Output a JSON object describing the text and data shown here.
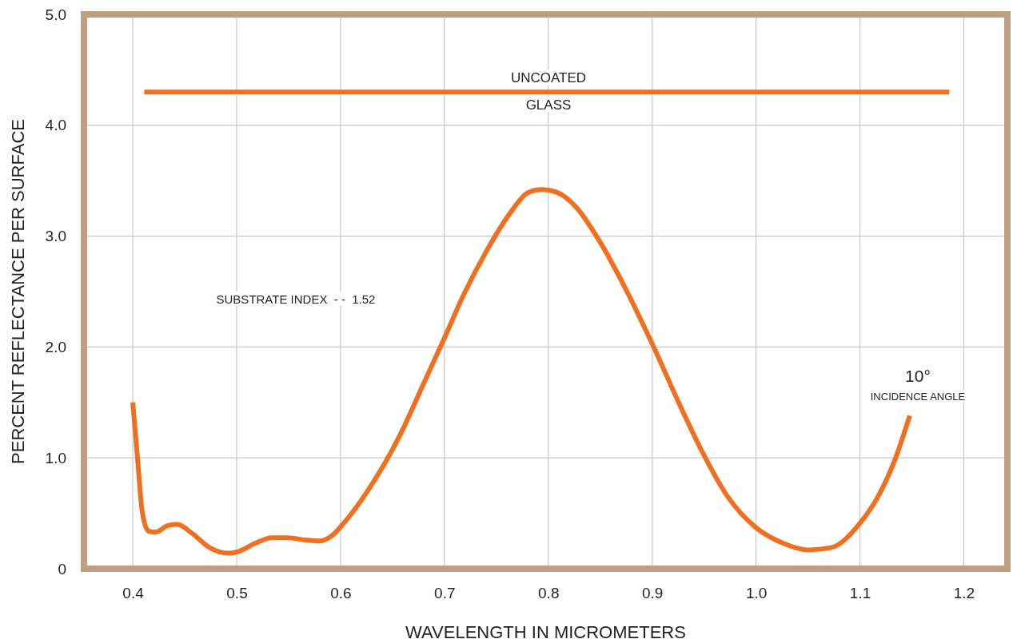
{
  "chart_data": {
    "type": "line",
    "xlabel": "WAVELENGTH IN MICROMETERS",
    "ylabel": "PERCENT REFLECTANCE PER SURFACE",
    "xlim": [
      0.353,
      1.242
    ],
    "xticks": [
      0.4,
      0.5,
      0.6,
      0.7,
      0.8,
      0.9,
      {
        "value": 1.0,
        "label": "1.0"
      },
      1.1,
      1.2
    ],
    "ylim": [
      0,
      5
    ],
    "yticks": [
      0,
      {
        "value": 1,
        "label": "1.0"
      },
      {
        "value": 2,
        "label": "2.0"
      },
      {
        "value": 3,
        "label": "3.0"
      },
      {
        "value": 4,
        "label": "4.0"
      },
      {
        "value": 5,
        "label": "5.0"
      }
    ],
    "grid": true,
    "series": [
      {
        "color": "#f07022",
        "x": [
          0.4,
          0.405,
          0.409,
          0.415,
          0.422,
          0.434,
          0.443,
          0.457,
          0.474,
          0.492,
          0.503,
          0.518,
          0.534,
          0.549,
          0.565,
          0.58,
          0.592,
          0.603,
          0.626,
          0.657,
          0.68,
          0.7,
          0.718,
          0.742,
          0.765,
          0.78,
          0.794,
          0.807,
          0.826,
          0.849,
          0.872,
          0.9,
          0.926,
          0.949,
          0.972,
          1.0,
          1.026,
          1.049,
          1.072,
          1.1,
          1.118,
          1.134,
          1.148
        ],
        "values": [
          1.5,
          0.95,
          0.52,
          0.34,
          0.33,
          0.39,
          0.4,
          0.32,
          0.19,
          0.14,
          0.16,
          0.23,
          0.28,
          0.28,
          0.26,
          0.25,
          0.3,
          0.41,
          0.7,
          1.2,
          1.67,
          2.08,
          2.46,
          2.89,
          3.23,
          3.39,
          3.42,
          3.4,
          3.27,
          2.96,
          2.57,
          2.03,
          1.49,
          1.04,
          0.66,
          0.37,
          0.23,
          0.17,
          0.19,
          0.41,
          0.66,
          0.99,
          1.38
        ]
      },
      {
        "color": "#f07022",
        "x": [
          0.411,
          1.186
        ],
        "values": [
          4.3,
          4.3
        ]
      }
    ],
    "annotations": [
      "UNCOATED",
      "GLASS",
      "SUBSTRATE INDEX  - -  1.52",
      "10°",
      "INCIDENCE ANGLE"
    ]
  }
}
